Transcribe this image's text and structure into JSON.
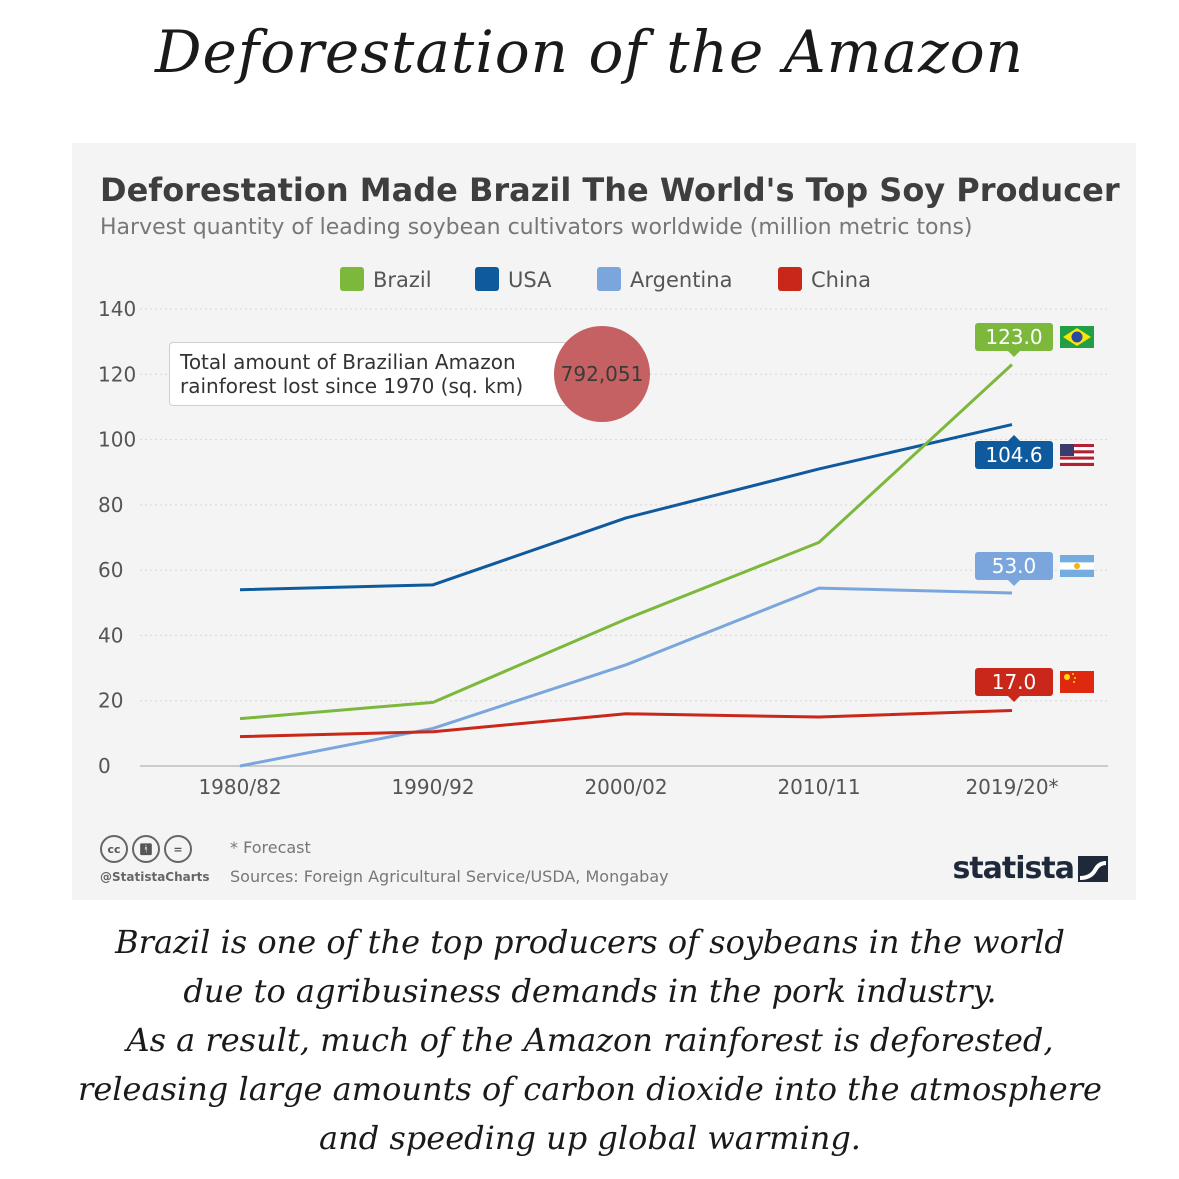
{
  "page": {
    "title": "Deforestation of the Amazon",
    "caption_lines": [
      "Brazil is one of the top producers of soybeans in the world",
      "due to agribusiness demands in the pork industry.",
      "As a result, much of the Amazon rainforest is deforested,",
      "releasing large amounts of carbon dioxide into the atmosphere",
      "and speeding up global warming."
    ]
  },
  "chart_data": {
    "type": "line",
    "title": "Deforestation Made Brazil The World's Top Soy Producer",
    "subtitle": "Harvest quantity of leading soybean cultivators worldwide (million metric tons)",
    "categories": [
      "1980/82",
      "1990/92",
      "2000/02",
      "2010/11",
      "2019/20*"
    ],
    "ylim": [
      0,
      140
    ],
    "yticks": [
      0,
      20,
      40,
      60,
      80,
      100,
      120,
      140
    ],
    "xlabel": "",
    "ylabel": "",
    "grid": true,
    "legend_position": "top",
    "series": [
      {
        "name": "Brazil",
        "color": "#7cb83b",
        "values": [
          14.5,
          19.5,
          45.0,
          68.5,
          123.0
        ],
        "end_label": "123.0",
        "flag": "brazil-flag-icon"
      },
      {
        "name": "USA",
        "color": "#0f5a9c",
        "values": [
          54.0,
          55.5,
          76.0,
          91.0,
          104.6
        ],
        "end_label": "104.6",
        "flag": "usa-flag-icon"
      },
      {
        "name": "Argentina",
        "color": "#7ba6dd",
        "values": [
          0,
          11.5,
          31.0,
          54.5,
          53.0
        ],
        "end_label": "53.0",
        "flag": "argentina-flag-icon"
      },
      {
        "name": "China",
        "color": "#c8271a",
        "values": [
          9.0,
          10.5,
          16.0,
          15.0,
          17.0
        ],
        "end_label": "17.0",
        "flag": "china-flag-icon"
      }
    ],
    "annotation": {
      "text_line1": "Total amount of Brazilian Amazon",
      "text_line2": "rainforest lost since 1970 (sq. km)",
      "value": "792,051"
    },
    "footnote": "* Forecast",
    "sources": "Sources: Foreign Agricultural Service/USDA, Mongabay",
    "handle": "@StatistaCharts",
    "brand": "statista",
    "license_icons": [
      "cc-icon",
      "attribution-icon",
      "no-derivatives-icon"
    ]
  }
}
